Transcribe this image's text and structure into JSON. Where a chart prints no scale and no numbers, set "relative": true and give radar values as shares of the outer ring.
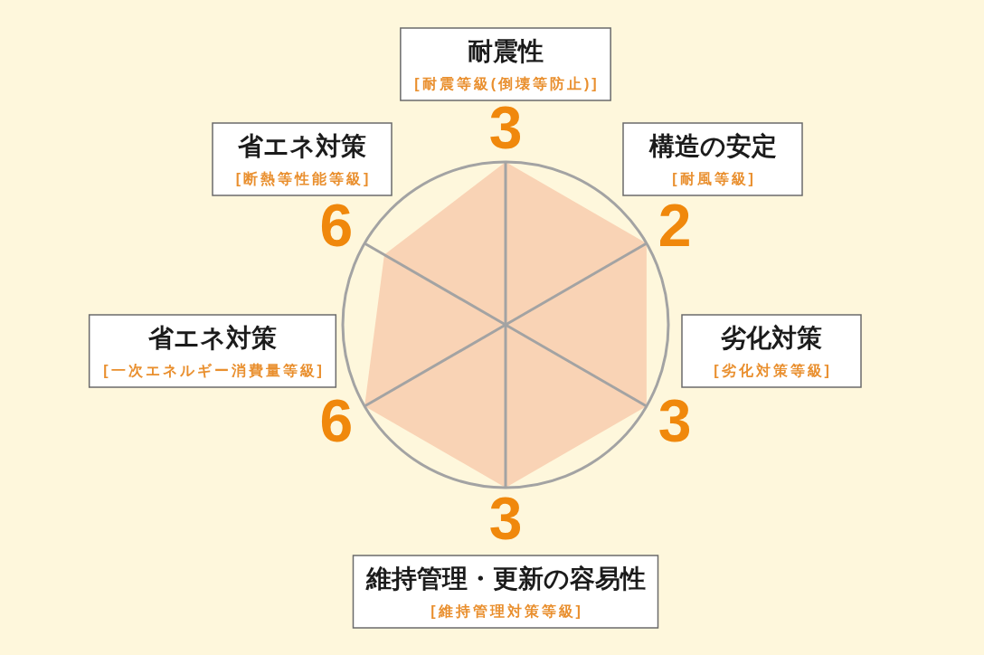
{
  "chart_data": {
    "type": "radar",
    "relative": true,
    "categories": [
      "耐震性\n[耐震等級(倒壊等防止)]",
      "構造の安定\n[耐風等級]",
      "劣化対策\n[劣化対策等級]",
      "維持管理・更新の容易性\n[維持管理対策等級]",
      "省エネ対策\n[一次エネルギー消費量等級]",
      "省エネ対策\n[断熱等性能等級]"
    ],
    "series": [
      {
        "color": "#f9d3b5",
        "values": [
          1,
          1,
          1,
          1,
          1,
          0.86
        ]
      }
    ],
    "annotations": [
      {
        "text": "3",
        "x": "耐震性\n[耐震等級(倒壊等防止)]"
      },
      {
        "text": "2",
        "x": "構造の安定\n[耐風等級]"
      },
      {
        "text": "3",
        "x": "劣化対策\n[劣化対策等級]"
      },
      {
        "text": "3",
        "x": "維持管理・更新の容易性\n[維持管理対策等級]"
      },
      {
        "text": "6",
        "x": "省エネ対策\n[一次エネルギー消費量等級]"
      },
      {
        "text": "6",
        "x": "省エネ対策\n[断熱等性能等級]"
      }
    ],
    "grid": true
  }
}
